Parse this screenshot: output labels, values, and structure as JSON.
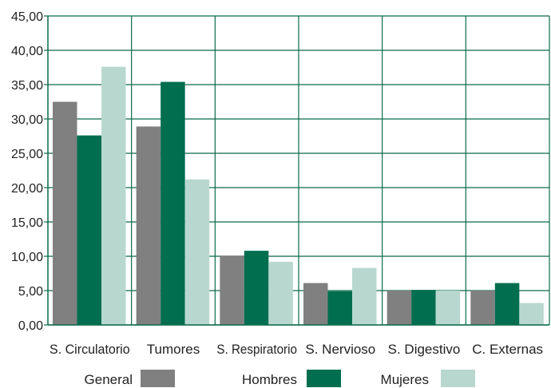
{
  "chart_data": {
    "type": "bar",
    "categories": [
      "S. Circulatorio",
      "Tumores",
      "S. Respiratorio",
      "S. Nervioso",
      "S. Digestivo",
      "C. Externas"
    ],
    "series": [
      {
        "name": "General",
        "values": [
          32.5,
          28.9,
          10.1,
          6.1,
          5.0,
          5.0
        ],
        "color": "#808080"
      },
      {
        "name": "Hombres",
        "values": [
          27.6,
          35.4,
          10.8,
          4.9,
          5.1,
          6.1
        ],
        "color": "#006e4f"
      },
      {
        "name": "Mujeres",
        "values": [
          37.6,
          21.2,
          9.2,
          8.3,
          5.0,
          3.2
        ],
        "color": "#b8d8cf"
      }
    ],
    "y_ticks": [
      "0,00",
      "5,00",
      "10,00",
      "15,00",
      "20,00",
      "25,00",
      "30,00",
      "35,00",
      "40,00",
      "45,00"
    ],
    "ylim": [
      0,
      45
    ],
    "grid": true,
    "grid_color": "#0b6b4a",
    "legend_position": "bottom",
    "title": "",
    "xlabel": "",
    "ylabel": ""
  }
}
